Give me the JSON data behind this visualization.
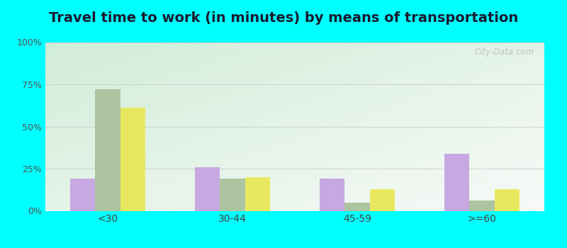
{
  "title": "Travel time to work (in minutes) by means of transportation",
  "categories": [
    "<30",
    "30-44",
    "45-59",
    ">=60"
  ],
  "series": {
    "Public transportation - Illinois": [
      19,
      26,
      19,
      34
    ],
    "Other means - Geneseo": [
      72,
      19,
      5,
      6
    ],
    "Other means - Illinois": [
      61,
      20,
      13,
      13
    ]
  },
  "colors": {
    "Public transportation - Illinois": "#c8a8e0",
    "Other means - Geneseo": "#adc4a0",
    "Other means - Illinois": "#e8e860"
  },
  "ylim": [
    0,
    100
  ],
  "yticks": [
    0,
    25,
    50,
    75,
    100
  ],
  "ytick_labels": [
    "0%",
    "25%",
    "50%",
    "75%",
    "100%"
  ],
  "outer_bg": "#00ffff",
  "title_fontsize": 14,
  "title_color": "#1a1a2e",
  "watermark": "City-Data.com",
  "bar_width": 0.2,
  "group_width": 1.0
}
